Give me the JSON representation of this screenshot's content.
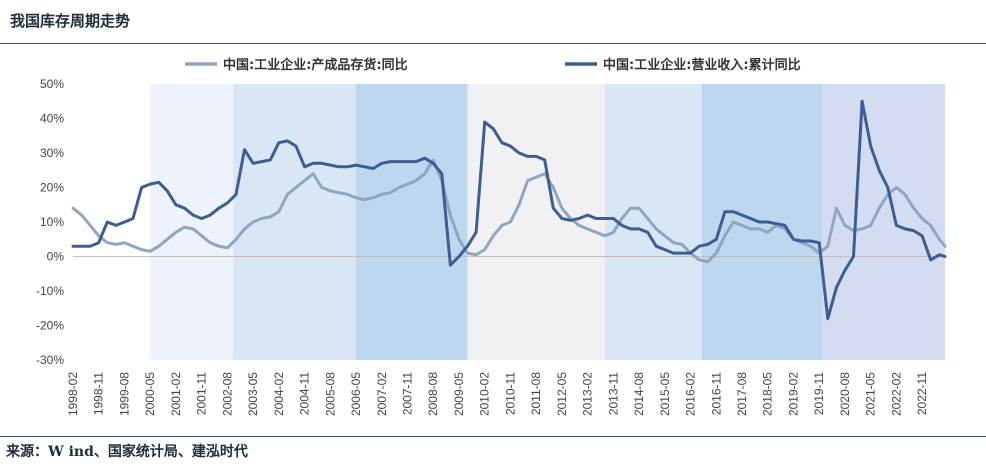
{
  "title": "我国库存周期走势",
  "source": "来源：W ind、国家统计局、建泓时代",
  "colors": {
    "inventory": "#8fa5c1",
    "revenue": "#3c5e94",
    "shade_light": "#eef2fb",
    "shade_mid": "#d9e6f6",
    "shade_dark": "#bdd7ee",
    "shade_gray": "#f1f1f4",
    "shade_purple": "#d3dcf0"
  },
  "chart_data": {
    "type": "line",
    "title": "我国库存周期走势",
    "ylim": [
      -30,
      50
    ],
    "y_ticks": [
      -30,
      -20,
      -10,
      0,
      10,
      20,
      30,
      40,
      50
    ],
    "y_tick_labels": [
      "-30%",
      "-20%",
      "-10%",
      "0%",
      "10%",
      "20%",
      "30%",
      "40%",
      "50%"
    ],
    "x_range": [
      "1998-02",
      "2023-07"
    ],
    "x_tick_labels": [
      "1998-02",
      "1998-11",
      "1999-08",
      "2000-05",
      "2001-02",
      "2001-11",
      "2002-08",
      "2003-05",
      "2004-02",
      "2004-11",
      "2005-08",
      "2006-05",
      "2007-02",
      "2007-11",
      "2008-08",
      "2009-05",
      "2010-02",
      "2010-11",
      "2011-08",
      "2012-05",
      "2013-02",
      "2013-11",
      "2014-08",
      "2015-05",
      "2016-02",
      "2016-11",
      "2017-08",
      "2018-05",
      "2019-02",
      "2019-11",
      "2020-08",
      "2021-05",
      "2022-02",
      "2022-11"
    ],
    "legend_position": "top",
    "shaded_periods": [
      {
        "start": "2000-05",
        "end": "2002-10",
        "tone": "shade_light"
      },
      {
        "start": "2002-10",
        "end": "2006-05",
        "tone": "shade_mid"
      },
      {
        "start": "2006-05",
        "end": "2009-08",
        "tone": "shade_dark"
      },
      {
        "start": "2009-08",
        "end": "2013-08",
        "tone": "shade_gray"
      },
      {
        "start": "2013-08",
        "end": "2016-06",
        "tone": "shade_mid"
      },
      {
        "start": "2016-06",
        "end": "2019-12",
        "tone": "shade_dark"
      },
      {
        "start": "2019-12",
        "end": "2023-07",
        "tone": "shade_purple"
      }
    ],
    "series": [
      {
        "name": "中国:工业企业:产成品存货:同比",
        "color_key": "inventory",
        "points": [
          [
            "1998-02",
            14
          ],
          [
            "1998-05",
            12
          ],
          [
            "1998-08",
            9
          ],
          [
            "1998-11",
            6
          ],
          [
            "1999-02",
            4
          ],
          [
            "1999-05",
            3.5
          ],
          [
            "1999-08",
            4
          ],
          [
            "1999-11",
            3
          ],
          [
            "2000-02",
            2
          ],
          [
            "2000-05",
            1.5
          ],
          [
            "2000-08",
            3
          ],
          [
            "2000-11",
            5
          ],
          [
            "2001-02",
            7
          ],
          [
            "2001-05",
            8.5
          ],
          [
            "2001-08",
            8
          ],
          [
            "2001-11",
            6
          ],
          [
            "2002-02",
            4
          ],
          [
            "2002-05",
            3
          ],
          [
            "2002-08",
            2.5
          ],
          [
            "2002-11",
            5
          ],
          [
            "2003-02",
            8
          ],
          [
            "2003-05",
            10
          ],
          [
            "2003-08",
            11
          ],
          [
            "2003-11",
            11.5
          ],
          [
            "2004-02",
            13
          ],
          [
            "2004-05",
            18
          ],
          [
            "2004-08",
            20
          ],
          [
            "2004-11",
            22
          ],
          [
            "2005-02",
            24
          ],
          [
            "2005-05",
            20
          ],
          [
            "2005-08",
            19
          ],
          [
            "2005-11",
            18.5
          ],
          [
            "2006-02",
            18
          ],
          [
            "2006-05",
            17
          ],
          [
            "2006-08",
            16.5
          ],
          [
            "2006-11",
            17
          ],
          [
            "2007-02",
            18
          ],
          [
            "2007-05",
            18.5
          ],
          [
            "2007-08",
            20
          ],
          [
            "2007-11",
            21
          ],
          [
            "2008-02",
            22
          ],
          [
            "2008-05",
            24
          ],
          [
            "2008-08",
            28
          ],
          [
            "2008-11",
            22
          ],
          [
            "2009-02",
            12
          ],
          [
            "2009-05",
            5
          ],
          [
            "2009-08",
            1
          ],
          [
            "2009-11",
            0.5
          ],
          [
            "2010-02",
            2
          ],
          [
            "2010-05",
            6
          ],
          [
            "2010-08",
            9
          ],
          [
            "2010-11",
            10
          ],
          [
            "2011-02",
            15
          ],
          [
            "2011-05",
            22
          ],
          [
            "2011-08",
            23
          ],
          [
            "2011-11",
            24
          ],
          [
            "2012-02",
            20
          ],
          [
            "2012-05",
            14
          ],
          [
            "2012-08",
            11
          ],
          [
            "2012-11",
            9
          ],
          [
            "2013-02",
            8
          ],
          [
            "2013-05",
            7
          ],
          [
            "2013-08",
            6
          ],
          [
            "2013-11",
            7
          ],
          [
            "2014-02",
            11
          ],
          [
            "2014-05",
            14
          ],
          [
            "2014-08",
            14
          ],
          [
            "2014-11",
            11
          ],
          [
            "2015-02",
            8
          ],
          [
            "2015-05",
            6
          ],
          [
            "2015-08",
            4
          ],
          [
            "2015-11",
            3.5
          ],
          [
            "2016-02",
            1
          ],
          [
            "2016-05",
            -1
          ],
          [
            "2016-08",
            -1.5
          ],
          [
            "2016-11",
            1
          ],
          [
            "2017-02",
            6
          ],
          [
            "2017-05",
            10
          ],
          [
            "2017-08",
            9
          ],
          [
            "2017-11",
            8
          ],
          [
            "2018-02",
            8
          ],
          [
            "2018-05",
            7
          ],
          [
            "2018-08",
            9
          ],
          [
            "2018-11",
            8
          ],
          [
            "2019-02",
            5
          ],
          [
            "2019-05",
            4
          ],
          [
            "2019-08",
            3
          ],
          [
            "2019-11",
            1
          ],
          [
            "2020-02",
            3
          ],
          [
            "2020-05",
            14
          ],
          [
            "2020-08",
            9
          ],
          [
            "2020-11",
            7.5
          ],
          [
            "2021-02",
            8
          ],
          [
            "2021-05",
            9
          ],
          [
            "2021-08",
            14
          ],
          [
            "2021-11",
            18
          ],
          [
            "2022-02",
            20
          ],
          [
            "2022-05",
            18
          ],
          [
            "2022-08",
            14
          ],
          [
            "2022-11",
            11
          ],
          [
            "2023-02",
            9
          ],
          [
            "2023-05",
            5
          ],
          [
            "2023-07",
            3
          ]
        ]
      },
      {
        "name": "中国:工业企业:营业收入:累计同比",
        "color_key": "revenue",
        "points": [
          [
            "1998-02",
            3
          ],
          [
            "1998-05",
            3
          ],
          [
            "1998-08",
            3
          ],
          [
            "1998-11",
            4
          ],
          [
            "1999-02",
            10
          ],
          [
            "1999-05",
            9
          ],
          [
            "1999-08",
            10
          ],
          [
            "1999-11",
            11
          ],
          [
            "2000-02",
            20
          ],
          [
            "2000-05",
            21
          ],
          [
            "2000-08",
            21.5
          ],
          [
            "2000-11",
            19
          ],
          [
            "2001-02",
            15
          ],
          [
            "2001-05",
            14
          ],
          [
            "2001-08",
            12
          ],
          [
            "2001-11",
            11
          ],
          [
            "2002-02",
            12
          ],
          [
            "2002-05",
            14
          ],
          [
            "2002-08",
            15.5
          ],
          [
            "2002-11",
            18
          ],
          [
            "2003-02",
            31
          ],
          [
            "2003-05",
            27
          ],
          [
            "2003-08",
            27.5
          ],
          [
            "2003-11",
            28
          ],
          [
            "2004-02",
            33
          ],
          [
            "2004-05",
            33.5
          ],
          [
            "2004-08",
            32
          ],
          [
            "2004-11",
            26
          ],
          [
            "2005-02",
            27
          ],
          [
            "2005-05",
            27
          ],
          [
            "2005-08",
            26.5
          ],
          [
            "2005-11",
            26
          ],
          [
            "2006-02",
            26
          ],
          [
            "2006-05",
            26.5
          ],
          [
            "2006-08",
            26
          ],
          [
            "2006-11",
            25.5
          ],
          [
            "2007-02",
            27
          ],
          [
            "2007-05",
            27.5
          ],
          [
            "2007-08",
            27.5
          ],
          [
            "2007-11",
            27.5
          ],
          [
            "2008-02",
            27.5
          ],
          [
            "2008-05",
            28.5
          ],
          [
            "2008-08",
            27
          ],
          [
            "2008-11",
            24
          ],
          [
            "2009-02",
            -2.5
          ],
          [
            "2009-05",
            0
          ],
          [
            "2009-08",
            3
          ],
          [
            "2009-11",
            7
          ],
          [
            "2010-02",
            39
          ],
          [
            "2010-05",
            37
          ],
          [
            "2010-08",
            33
          ],
          [
            "2010-11",
            32
          ],
          [
            "2011-02",
            30
          ],
          [
            "2011-05",
            29
          ],
          [
            "2011-08",
            29
          ],
          [
            "2011-11",
            28
          ],
          [
            "2012-02",
            14
          ],
          [
            "2012-05",
            11
          ],
          [
            "2012-08",
            10.5
          ],
          [
            "2012-11",
            11
          ],
          [
            "2013-02",
            12
          ],
          [
            "2013-05",
            11
          ],
          [
            "2013-08",
            11
          ],
          [
            "2013-11",
            11
          ],
          [
            "2014-02",
            9
          ],
          [
            "2014-05",
            8
          ],
          [
            "2014-08",
            8
          ],
          [
            "2014-11",
            7
          ],
          [
            "2015-02",
            3
          ],
          [
            "2015-05",
            2
          ],
          [
            "2015-08",
            1
          ],
          [
            "2015-11",
            1
          ],
          [
            "2016-02",
            1
          ],
          [
            "2016-05",
            3
          ],
          [
            "2016-08",
            3.5
          ],
          [
            "2016-11",
            5
          ],
          [
            "2017-02",
            13
          ],
          [
            "2017-05",
            13
          ],
          [
            "2017-08",
            12
          ],
          [
            "2017-11",
            11
          ],
          [
            "2018-02",
            10
          ],
          [
            "2018-05",
            10
          ],
          [
            "2018-08",
            9.5
          ],
          [
            "2018-11",
            9
          ],
          [
            "2019-02",
            5
          ],
          [
            "2019-05",
            4.5
          ],
          [
            "2019-08",
            4.5
          ],
          [
            "2019-11",
            4
          ],
          [
            "2020-02",
            -18
          ],
          [
            "2020-05",
            -9
          ],
          [
            "2020-08",
            -4
          ],
          [
            "2020-11",
            0
          ],
          [
            "2021-02",
            45
          ],
          [
            "2021-05",
            32
          ],
          [
            "2021-08",
            25
          ],
          [
            "2021-11",
            20
          ],
          [
            "2022-02",
            9
          ],
          [
            "2022-05",
            8
          ],
          [
            "2022-08",
            7.5
          ],
          [
            "2022-11",
            6
          ],
          [
            "2023-02",
            -1
          ],
          [
            "2023-05",
            0.5
          ],
          [
            "2023-07",
            0
          ]
        ]
      }
    ]
  }
}
